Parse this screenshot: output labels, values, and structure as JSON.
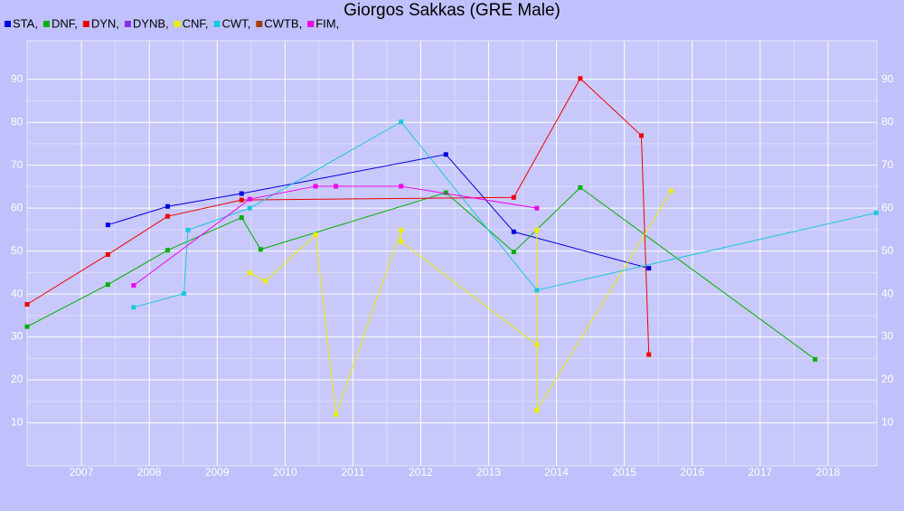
{
  "chart_data": {
    "type": "line",
    "title": "Giorgos Sakkas (GRE Male)",
    "xlim": [
      2006.2,
      2018.72
    ],
    "ylim": [
      0,
      99
    ],
    "xticks": [
      2007,
      2008,
      2009,
      2010,
      2011,
      2012,
      2013,
      2014,
      2015,
      2016,
      2017,
      2018
    ],
    "yticks": [
      10,
      20,
      30,
      40,
      50,
      60,
      70,
      80,
      90
    ],
    "grid": true,
    "series": [
      {
        "name": "STA,",
        "color": "#0000dd",
        "x": [
          2007.39,
          2008.27,
          2009.36,
          2012.37,
          2013.37,
          2015.36
        ],
        "values": [
          56.1,
          60.4,
          63.4,
          72.5,
          54.5,
          46.0
        ]
      },
      {
        "name": "DNF,",
        "color": "#00b000",
        "x": [
          2006.2,
          2007.39,
          2008.27,
          2009.36,
          2009.64,
          2012.37,
          2013.37,
          2014.35,
          2017.81
        ],
        "values": [
          32.4,
          42.2,
          50.2,
          57.8,
          50.4,
          63.6,
          49.8,
          64.8,
          24.8
        ]
      },
      {
        "name": "DYN,",
        "color": "#ee0000",
        "x": [
          2006.2,
          2007.39,
          2008.27,
          2009.36,
          2013.37,
          2014.35,
          2015.25,
          2015.36
        ],
        "values": [
          37.6,
          49.2,
          58.1,
          61.9,
          62.5,
          90.2,
          76.9,
          25.9
        ]
      },
      {
        "name": "DYNB,",
        "color": "#8a2be2",
        "x": [],
        "values": []
      },
      {
        "name": "CNF,",
        "color": "#eeee00",
        "x": [
          2009.48,
          2009.71,
          2010.45,
          2010.75,
          2011.71,
          2011.71,
          2013.71,
          2013.71,
          2013.71,
          2015.69
        ],
        "values": [
          44.9,
          43.0,
          53.8,
          11.9,
          54.9,
          52.2,
          28.2,
          54.9,
          12.9,
          64.0
        ]
      },
      {
        "name": "CWT,",
        "color": "#1ec8dc",
        "x": [
          2007.77,
          2008.51,
          2008.57,
          2009.48,
          2011.71,
          2013.71,
          2018.71
        ],
        "values": [
          36.9,
          40.1,
          54.9,
          60.0,
          80.1,
          40.9,
          58.9
        ]
      },
      {
        "name": "CWTB,",
        "color": "#a0410d",
        "x": [],
        "values": []
      },
      {
        "name": "FIM,",
        "color": "#ee00ee",
        "x": [
          2007.77,
          2009.48,
          2010.45,
          2010.75,
          2011.71,
          2013.71
        ],
        "values": [
          42.0,
          62.1,
          65.1,
          65.1,
          65.1,
          60.0
        ]
      }
    ]
  }
}
